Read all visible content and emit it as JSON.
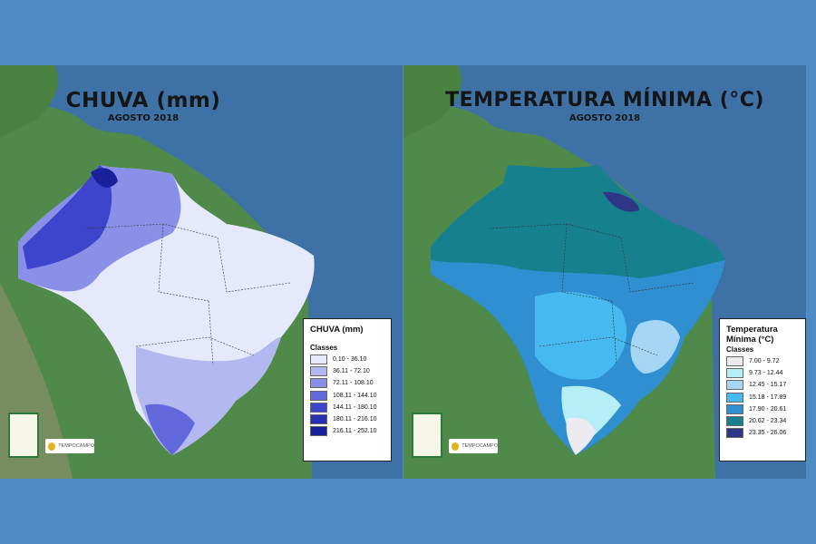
{
  "panels": [
    {
      "title": "CHUVA (mm)",
      "subtitle": "AGOSTO 2018",
      "legend": {
        "title": "CHUVA (mm)",
        "classes_label": "Classes",
        "items": [
          {
            "label": "0.10 - 36.10",
            "color": "#e6e8fb"
          },
          {
            "label": "36.11 - 72.10",
            "color": "#b4b8f1"
          },
          {
            "label": "72.11 - 108.10",
            "color": "#8a90e8"
          },
          {
            "label": "108.11 - 144.10",
            "color": "#6068dc"
          },
          {
            "label": "144.11 - 180.10",
            "color": "#3d45cc"
          },
          {
            "label": "180.11 - 216.10",
            "color": "#2830b4"
          },
          {
            "label": "216.11 - 252.10",
            "color": "#18209a"
          }
        ]
      },
      "logos": {
        "left": "logo-bruno",
        "right": "TEMPOCAMPO"
      }
    },
    {
      "title": "TEMPERATURA MÍNIMA (°C)",
      "subtitle": "AGOSTO 2018",
      "legend": {
        "title": "Temperatura Mínima (°C)",
        "classes_label": "Classes",
        "items": [
          {
            "label": "7.00 - 9.72",
            "color": "#ececf0"
          },
          {
            "label": "9.73 - 12.44",
            "color": "#b6eef8"
          },
          {
            "label": "12.45 - 15.17",
            "color": "#a6d6f4"
          },
          {
            "label": "15.18 - 17.89",
            "color": "#46baf0"
          },
          {
            "label": "17.90 - 20.61",
            "color": "#2f8fd0"
          },
          {
            "label": "20.62 - 23.34",
            "color": "#17808e"
          },
          {
            "label": "23.35 - 26.06",
            "color": "#2e3685"
          }
        ]
      },
      "logos": {
        "left": "logo-bruno",
        "right": "TEMPOCAMPO"
      }
    }
  ]
}
